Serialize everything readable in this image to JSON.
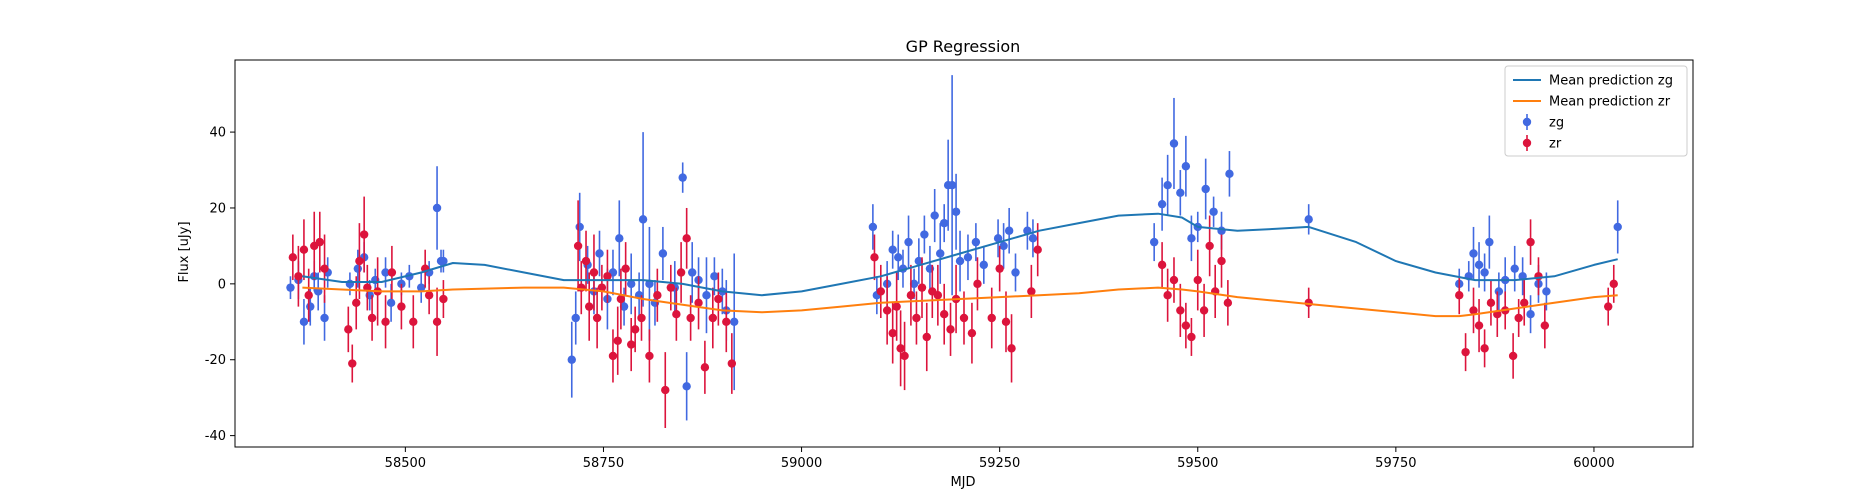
{
  "chart_data": {
    "type": "scatter",
    "title": "GP Regression",
    "xlabel": "MJD",
    "ylabel": "Flux [uJy]",
    "xlim": [
      58285,
      60125
    ],
    "ylim": [
      -43,
      59
    ],
    "xticks": [
      58500,
      58750,
      59000,
      59250,
      59500,
      59750,
      60000
    ],
    "yticks": [
      -40,
      -20,
      0,
      20,
      40
    ],
    "grid": false,
    "legend_position": "top-right",
    "series": [
      {
        "name": "Mean prediction zg",
        "kind": "line",
        "color": "#1f77b4",
        "x": [
          58370,
          58420,
          58470,
          58520,
          58560,
          58600,
          58650,
          58700,
          58750,
          58800,
          58850,
          58900,
          58950,
          59000,
          59050,
          59100,
          59150,
          59200,
          59250,
          59300,
          59350,
          59400,
          59450,
          59480,
          59500,
          59550,
          59600,
          59640,
          59700,
          59750,
          59800,
          59850,
          59900,
          59950,
          60000,
          60030
        ],
        "y": [
          2,
          0.5,
          0.5,
          3,
          5.5,
          5,
          3,
          1,
          1,
          1,
          0,
          -2,
          -3,
          -2,
          0,
          2,
          5,
          8,
          11,
          14,
          16,
          18,
          18.5,
          17.5,
          15,
          14,
          14.5,
          15,
          11,
          6,
          3,
          1,
          1,
          2,
          5,
          6.5
        ]
      },
      {
        "name": "Mean prediction zr",
        "kind": "line",
        "color": "#ff7f0e",
        "x": [
          58370,
          58420,
          58470,
          58520,
          58560,
          58650,
          58700,
          58750,
          58800,
          58850,
          58900,
          58950,
          59000,
          59050,
          59100,
          59150,
          59200,
          59250,
          59300,
          59350,
          59400,
          59450,
          59480,
          59500,
          59550,
          59600,
          59650,
          59700,
          59750,
          59800,
          59830,
          59850,
          59900,
          59950,
          60000,
          60030
        ],
        "y": [
          -1,
          -1.5,
          -2,
          -2,
          -1.5,
          -1,
          -1,
          -2,
          -4,
          -5.5,
          -7,
          -7.5,
          -7,
          -6,
          -5,
          -4.5,
          -4,
          -3.5,
          -3,
          -2.5,
          -1.5,
          -1,
          -1.5,
          -2,
          -3.5,
          -4.5,
          -5.5,
          -6.5,
          -7.5,
          -8.5,
          -8.5,
          -8,
          -6.5,
          -5,
          -3.5,
          -3
        ]
      },
      {
        "name": "zg",
        "kind": "errorbar",
        "color": "#4169e1",
        "points": [
          [
            58355,
            -1,
            3
          ],
          [
            58365,
            1,
            5
          ],
          [
            58372,
            -10,
            6
          ],
          [
            58380,
            -6,
            5
          ],
          [
            58385,
            2,
            4
          ],
          [
            58390,
            -2,
            5
          ],
          [
            58398,
            -9,
            6
          ],
          [
            58402,
            3,
            4
          ],
          [
            58430,
            0,
            3
          ],
          [
            58440,
            4,
            5
          ],
          [
            58448,
            7,
            4
          ],
          [
            58455,
            -3,
            4
          ],
          [
            58462,
            1,
            3
          ],
          [
            58475,
            3,
            4
          ],
          [
            58482,
            -5,
            5
          ],
          [
            58495,
            0,
            3
          ],
          [
            58505,
            2,
            3
          ],
          [
            58520,
            -1,
            4
          ],
          [
            58530,
            3,
            3
          ],
          [
            58540,
            20,
            11
          ],
          [
            58545,
            6,
            3
          ],
          [
            58548,
            6,
            3
          ],
          [
            58710,
            -20,
            10
          ],
          [
            58715,
            -9,
            7
          ],
          [
            58720,
            15,
            9
          ],
          [
            58730,
            5,
            5
          ],
          [
            58738,
            -2,
            6
          ],
          [
            58745,
            8,
            6
          ],
          [
            58755,
            -4,
            8
          ],
          [
            58762,
            3,
            6
          ],
          [
            58770,
            12,
            10
          ],
          [
            58776,
            -6,
            5
          ],
          [
            58785,
            0,
            8
          ],
          [
            58795,
            -3,
            6
          ],
          [
            58800,
            17,
            23
          ],
          [
            58808,
            0,
            15
          ],
          [
            58815,
            -5,
            6
          ],
          [
            58825,
            8,
            7
          ],
          [
            58840,
            -1,
            7
          ],
          [
            58850,
            28,
            4
          ],
          [
            58855,
            -27,
            9
          ],
          [
            58862,
            3,
            8
          ],
          [
            58870,
            1,
            6
          ],
          [
            58880,
            -3,
            10
          ],
          [
            58890,
            2,
            5
          ],
          [
            58900,
            -2,
            6
          ],
          [
            58905,
            -7,
            8
          ],
          [
            58915,
            -10,
            18
          ],
          [
            59090,
            15,
            6
          ],
          [
            59095,
            -3,
            5
          ],
          [
            59108,
            0,
            6
          ],
          [
            59115,
            9,
            5
          ],
          [
            59122,
            7,
            6
          ],
          [
            59128,
            4,
            5
          ],
          [
            59135,
            11,
            7
          ],
          [
            59142,
            0,
            4
          ],
          [
            59148,
            6,
            6
          ],
          [
            59155,
            13,
            5
          ],
          [
            59162,
            4,
            6
          ],
          [
            59168,
            18,
            7
          ],
          [
            59175,
            8,
            8
          ],
          [
            59180,
            16,
            5
          ],
          [
            59185,
            26,
            12
          ],
          [
            59190,
            26,
            29
          ],
          [
            59195,
            19,
            10
          ],
          [
            59200,
            6,
            8
          ],
          [
            59210,
            7,
            6
          ],
          [
            59220,
            11,
            5
          ],
          [
            59230,
            5,
            5
          ],
          [
            59248,
            12,
            5
          ],
          [
            59255,
            10,
            6
          ],
          [
            59262,
            14,
            6
          ],
          [
            59270,
            3,
            5
          ],
          [
            59285,
            14,
            5
          ],
          [
            59292,
            12,
            5
          ],
          [
            59445,
            11,
            5
          ],
          [
            59455,
            21,
            7
          ],
          [
            59462,
            26,
            8
          ],
          [
            59470,
            37,
            12
          ],
          [
            59478,
            24,
            6
          ],
          [
            59485,
            31,
            8
          ],
          [
            59492,
            12,
            6
          ],
          [
            59500,
            15,
            4
          ],
          [
            59510,
            25,
            8
          ],
          [
            59520,
            19,
            4
          ],
          [
            59530,
            14,
            5
          ],
          [
            59540,
            29,
            6
          ],
          [
            59640,
            17,
            4
          ],
          [
            59830,
            0,
            4
          ],
          [
            59842,
            2,
            4
          ],
          [
            59848,
            8,
            7
          ],
          [
            59855,
            5,
            6
          ],
          [
            59862,
            3,
            5
          ],
          [
            59868,
            11,
            7
          ],
          [
            59880,
            -2,
            5
          ],
          [
            59888,
            1,
            6
          ],
          [
            59900,
            4,
            6
          ],
          [
            59910,
            2,
            5
          ],
          [
            59920,
            -8,
            5
          ],
          [
            59930,
            0,
            5
          ],
          [
            59940,
            -2,
            5
          ],
          [
            60030,
            15,
            7
          ]
        ]
      },
      {
        "name": "zr",
        "kind": "errorbar",
        "color": "#dc143c",
        "points": [
          [
            58358,
            7,
            6
          ],
          [
            58365,
            2,
            8
          ],
          [
            58372,
            9,
            8
          ],
          [
            58378,
            -3,
            7
          ],
          [
            58385,
            10,
            9
          ],
          [
            58392,
            11,
            8
          ],
          [
            58398,
            4,
            9
          ],
          [
            58428,
            -12,
            6
          ],
          [
            58433,
            -21,
            5
          ],
          [
            58438,
            -5,
            7
          ],
          [
            58442,
            6,
            10
          ],
          [
            58448,
            13,
            10
          ],
          [
            58452,
            -1,
            6
          ],
          [
            58458,
            -9,
            6
          ],
          [
            58465,
            -2,
            9
          ],
          [
            58475,
            -10,
            7
          ],
          [
            58483,
            3,
            7
          ],
          [
            58495,
            -6,
            6
          ],
          [
            58510,
            -10,
            7
          ],
          [
            58525,
            4,
            5
          ],
          [
            58530,
            -3,
            5
          ],
          [
            58540,
            -10,
            9
          ],
          [
            58548,
            -4,
            5
          ],
          [
            58718,
            10,
            12
          ],
          [
            58722,
            -1,
            7
          ],
          [
            58728,
            6,
            8
          ],
          [
            58732,
            -6,
            9
          ],
          [
            58738,
            3,
            10
          ],
          [
            58742,
            -9,
            8
          ],
          [
            58748,
            -1,
            6
          ],
          [
            58755,
            2,
            7
          ],
          [
            58762,
            -19,
            7
          ],
          [
            58768,
            -15,
            9
          ],
          [
            58772,
            -4,
            8
          ],
          [
            58778,
            4,
            7
          ],
          [
            58785,
            -16,
            7
          ],
          [
            58790,
            -12,
            6
          ],
          [
            58798,
            -9,
            6
          ],
          [
            58808,
            -19,
            7
          ],
          [
            58818,
            -3,
            7
          ],
          [
            58828,
            -28,
            10
          ],
          [
            58835,
            -1,
            6
          ],
          [
            58842,
            -8,
            7
          ],
          [
            58848,
            3,
            8
          ],
          [
            58855,
            12,
            8
          ],
          [
            58860,
            -9,
            6
          ],
          [
            58870,
            -5,
            7
          ],
          [
            58878,
            -22,
            7
          ],
          [
            58888,
            -9,
            8
          ],
          [
            58895,
            -4,
            7
          ],
          [
            58905,
            -10,
            8
          ],
          [
            58912,
            -21,
            8
          ],
          [
            59092,
            7,
            6
          ],
          [
            59100,
            -2,
            7
          ],
          [
            59108,
            -7,
            9
          ],
          [
            59115,
            -13,
            8
          ],
          [
            59120,
            -6,
            9
          ],
          [
            59125,
            -17,
            10
          ],
          [
            59130,
            -19,
            9
          ],
          [
            59138,
            -3,
            8
          ],
          [
            59145,
            -9,
            7
          ],
          [
            59152,
            -1,
            8
          ],
          [
            59158,
            -14,
            9
          ],
          [
            59165,
            -2,
            7
          ],
          [
            59172,
            -3,
            8
          ],
          [
            59180,
            -8,
            8
          ],
          [
            59188,
            -12,
            7
          ],
          [
            59195,
            -4,
            9
          ],
          [
            59205,
            -9,
            7
          ],
          [
            59215,
            -13,
            8
          ],
          [
            59222,
            0,
            7
          ],
          [
            59240,
            -9,
            8
          ],
          [
            59250,
            4,
            6
          ],
          [
            59258,
            -10,
            8
          ],
          [
            59265,
            -17,
            9
          ],
          [
            59290,
            -2,
            7
          ],
          [
            59298,
            9,
            7
          ],
          [
            59455,
            5,
            6
          ],
          [
            59462,
            -3,
            7
          ],
          [
            59470,
            1,
            6
          ],
          [
            59478,
            -7,
            7
          ],
          [
            59485,
            -11,
            6
          ],
          [
            59492,
            -14,
            5
          ],
          [
            59500,
            1,
            8
          ],
          [
            59508,
            -7,
            7
          ],
          [
            59515,
            10,
            8
          ],
          [
            59522,
            -2,
            7
          ],
          [
            59530,
            6,
            7
          ],
          [
            59538,
            -5,
            6
          ],
          [
            59640,
            -5,
            4
          ],
          [
            59830,
            -3,
            5
          ],
          [
            59838,
            -18,
            5
          ],
          [
            59848,
            -7,
            6
          ],
          [
            59855,
            -11,
            7
          ],
          [
            59862,
            -17,
            5
          ],
          [
            59870,
            -5,
            6
          ],
          [
            59878,
            -8,
            6
          ],
          [
            59888,
            -7,
            5
          ],
          [
            59898,
            -19,
            6
          ],
          [
            59905,
            -9,
            5
          ],
          [
            59912,
            -5,
            6
          ],
          [
            59920,
            11,
            6
          ],
          [
            59930,
            2,
            5
          ],
          [
            59938,
            -11,
            6
          ],
          [
            60018,
            -6,
            5
          ],
          [
            60025,
            0,
            5
          ]
        ]
      }
    ]
  }
}
